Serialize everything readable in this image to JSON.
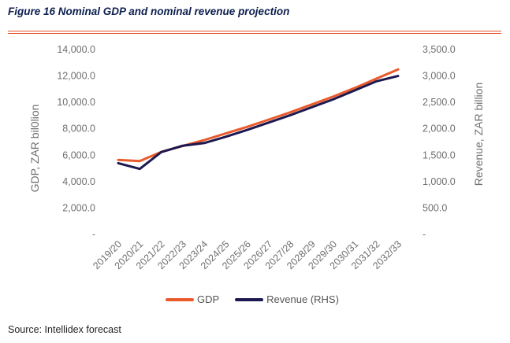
{
  "figure_title": "Figure 16 Nominal GDP and nominal revenue projection",
  "source": "Source: Intellidex forecast",
  "colors": {
    "accent_rule": "#e2562b",
    "gdp": "#ea5a2b",
    "revenue": "#1c1950"
  },
  "chart_data": {
    "type": "line",
    "categories": [
      "2019/20",
      "2020/21",
      "2021/22",
      "2022/23",
      "2023/24",
      "2024/25",
      "2025/26",
      "2026/27",
      "2027/28",
      "2028/29",
      "2029/30",
      "2030/31",
      "2031/32",
      "2032/33"
    ],
    "ylabel": "GDP, ZAR bil0lion",
    "y2label": "Revenue, ZAR billion",
    "ylim": [
      0,
      14000
    ],
    "y2lim": [
      0,
      3500
    ],
    "y_ticks": [
      "-",
      "2,000.0",
      "4,000.0",
      "6,000.0",
      "8,000.0",
      "10,000.0",
      "12,000.0",
      "14,000.0"
    ],
    "y2_ticks": [
      "-",
      "500.0",
      "1,000.0",
      "1,500.0",
      "2,000.0",
      "2,500.0",
      "3,000.0",
      "3,500.0"
    ],
    "grid": false,
    "legend_position": "bottom",
    "series": [
      {
        "name": "GDP",
        "axis": "left",
        "values": [
          5650,
          5550,
          6250,
          6700,
          7150,
          7650,
          8150,
          8700,
          9250,
          9850,
          10450,
          11100,
          11800,
          12500
        ]
      },
      {
        "name": "Revenue (RHS)",
        "axis": "right",
        "values": [
          1350,
          1240,
          1560,
          1680,
          1730,
          1850,
          1980,
          2120,
          2260,
          2410,
          2560,
          2730,
          2900,
          3000
        ]
      }
    ]
  }
}
